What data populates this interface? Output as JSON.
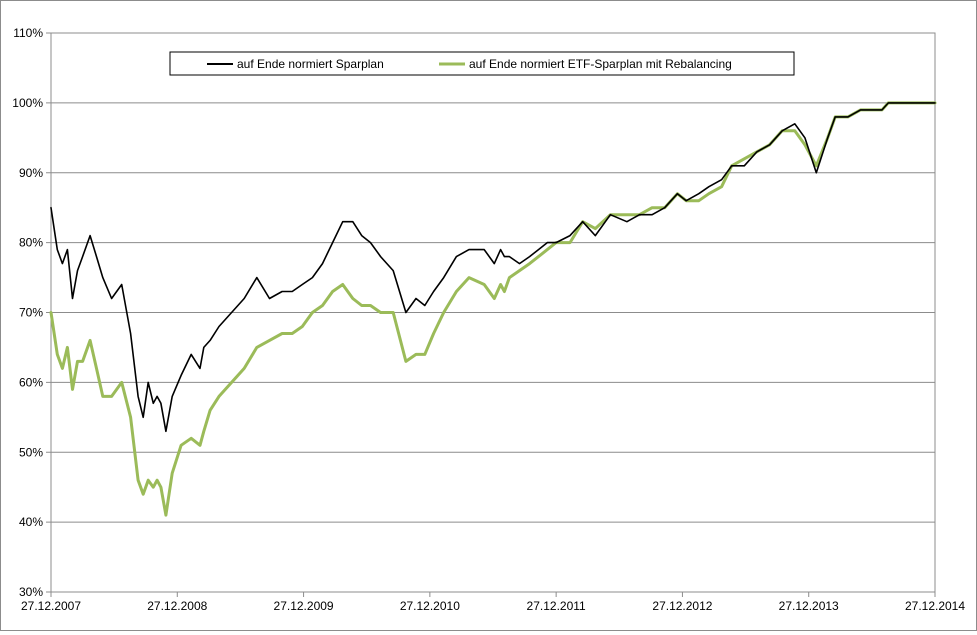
{
  "chart_data": {
    "type": "line",
    "title": "",
    "xlabel": "",
    "ylabel": "",
    "x_ticks": [
      "27.12.2007",
      "27.12.2008",
      "27.12.2009",
      "27.12.2010",
      "27.12.2011",
      "27.12.2012",
      "27.12.2013",
      "27.12.2014"
    ],
    "y_ticks": [
      "30%",
      "40%",
      "50%",
      "60%",
      "70%",
      "80%",
      "90%",
      "100%",
      "110%"
    ],
    "ylim": [
      30,
      110
    ],
    "xlim": [
      2007.99,
      2014.99
    ],
    "grid": "horizontal",
    "legend_position": "top-center",
    "x": [
      2007.99,
      2008.04,
      2008.08,
      2008.12,
      2008.16,
      2008.2,
      2008.24,
      2008.3,
      2008.35,
      2008.4,
      2008.47,
      2008.55,
      2008.62,
      2008.68,
      2008.72,
      2008.76,
      2008.8,
      2008.83,
      2008.86,
      2008.9,
      2008.95,
      2009.02,
      2009.1,
      2009.17,
      2009.2,
      2009.25,
      2009.32,
      2009.42,
      2009.52,
      2009.62,
      2009.72,
      2009.82,
      2009.9,
      2009.98,
      2010.06,
      2010.14,
      2010.22,
      2010.3,
      2010.38,
      2010.45,
      2010.52,
      2010.6,
      2010.7,
      2010.8,
      2010.88,
      2010.95,
      2011.02,
      2011.1,
      2011.2,
      2011.3,
      2011.42,
      2011.5,
      2011.55,
      2011.58,
      2011.62,
      2011.7,
      2011.78,
      2011.85,
      2011.92,
      2011.99,
      2012.1,
      2012.2,
      2012.3,
      2012.42,
      2012.55,
      2012.65,
      2012.75,
      2012.85,
      2012.95,
      2013.02,
      2013.12,
      2013.2,
      2013.3,
      2013.38,
      2013.48,
      2013.58,
      2013.68,
      2013.78,
      2013.88,
      2013.96,
      2014.05,
      2014.14,
      2014.2,
      2014.3,
      2014.4,
      2014.5,
      2014.57,
      2014.62,
      2014.68,
      2014.73,
      2014.77,
      2014.82,
      2014.87,
      2014.91,
      2014.95,
      2014.99
    ],
    "series": [
      {
        "name": "auf Ende normiert Sparplan",
        "color": "#000000",
        "values": [
          85,
          79,
          77,
          79,
          72,
          76,
          78,
          81,
          78,
          75,
          72,
          74,
          67,
          58,
          55,
          60,
          57,
          58,
          57,
          53,
          58,
          61,
          64,
          62,
          65,
          66,
          68,
          70,
          72,
          75,
          72,
          73,
          73,
          74,
          75,
          77,
          80,
          83,
          83,
          81,
          80,
          78,
          76,
          70,
          72,
          71,
          73,
          75,
          78,
          79,
          79,
          77,
          79,
          78,
          78,
          77,
          78,
          79,
          80,
          80,
          81,
          83,
          81,
          84,
          83,
          84,
          84,
          85,
          87,
          86,
          87,
          88,
          89,
          91,
          91,
          93,
          94,
          96,
          97,
          95,
          90,
          95,
          98,
          98,
          99,
          99,
          99,
          100,
          100,
          100,
          100,
          100,
          100,
          100,
          100,
          100
        ]
      },
      {
        "name": "auf Ende normiert ETF-Sparplan mit Rebalancing",
        "color": "#9bbb59",
        "values": [
          70,
          64,
          62,
          65,
          59,
          63,
          63,
          66,
          62,
          58,
          58,
          60,
          55,
          46,
          44,
          46,
          45,
          46,
          45,
          41,
          47,
          51,
          52,
          51,
          53,
          56,
          58,
          60,
          62,
          65,
          66,
          67,
          67,
          68,
          70,
          71,
          73,
          74,
          72,
          71,
          71,
          70,
          70,
          63,
          64,
          64,
          67,
          70,
          73,
          75,
          74,
          72,
          74,
          73,
          75,
          76,
          77,
          78,
          79,
          80,
          80,
          83,
          82,
          84,
          84,
          84,
          85,
          85,
          87,
          86,
          86,
          87,
          88,
          91,
          92,
          93,
          94,
          96,
          96,
          94,
          91,
          95,
          98,
          98,
          99,
          99,
          99,
          100,
          100,
          100,
          100,
          100,
          100,
          100,
          100,
          100
        ]
      }
    ]
  }
}
